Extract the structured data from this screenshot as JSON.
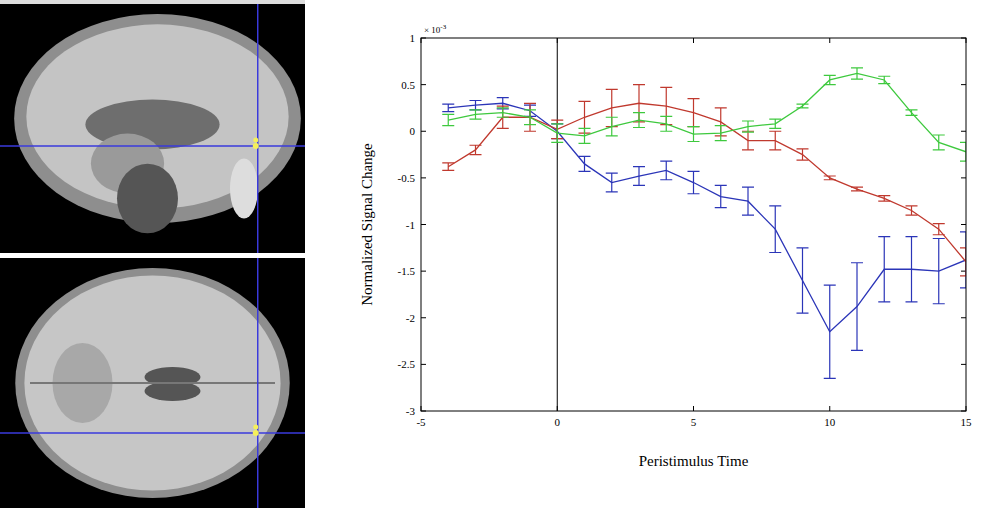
{
  "chart_data": {
    "type": "line",
    "xlabel": "Peristimulus Time",
    "ylabel": "Normalized Signal Change",
    "y_exponent_label": {
      "base": "× 10",
      "exponent": "-3"
    },
    "x": [
      -4,
      -3,
      -2,
      -1,
      0,
      1,
      2,
      3,
      4,
      5,
      6,
      7,
      8,
      9,
      10,
      11,
      12,
      13,
      14,
      15
    ],
    "xlim": [
      -5,
      15
    ],
    "xticks": [
      -5,
      0,
      5,
      10,
      15
    ],
    "ylim": [
      -3,
      1
    ],
    "yticks": [
      -3,
      -2.5,
      -2,
      -1.5,
      -1,
      -0.5,
      0,
      0.5,
      1
    ],
    "vline_x": 0,
    "grid": false,
    "series": [
      {
        "color": "#2b35b8",
        "values": [
          0.25,
          0.28,
          0.3,
          0.22,
          0.0,
          -0.35,
          -0.55,
          -0.48,
          -0.42,
          -0.55,
          -0.7,
          -0.75,
          -1.05,
          -1.6,
          -2.15,
          -1.88,
          -1.48,
          -1.48,
          -1.5,
          -1.38
        ],
        "errors": [
          0.04,
          0.05,
          0.06,
          0.06,
          0.08,
          0.08,
          0.1,
          0.1,
          0.1,
          0.12,
          0.12,
          0.15,
          0.25,
          0.35,
          0.5,
          0.47,
          0.35,
          0.35,
          0.35,
          0.3
        ]
      },
      {
        "color": "#c0392e",
        "values": [
          -0.38,
          -0.2,
          0.15,
          0.15,
          0.02,
          0.15,
          0.25,
          0.3,
          0.27,
          0.2,
          0.1,
          -0.1,
          -0.1,
          -0.25,
          -0.5,
          -0.62,
          -0.72,
          -0.85,
          -1.05,
          -1.4
        ],
        "errors": [
          0.04,
          0.05,
          0.12,
          0.15,
          0.1,
          0.17,
          0.2,
          0.2,
          0.2,
          0.15,
          0.15,
          0.1,
          0.1,
          0.06,
          0.02,
          0.02,
          0.03,
          0.05,
          0.06,
          0.15
        ]
      },
      {
        "color": "#3ec93e",
        "values": [
          0.12,
          0.18,
          0.2,
          0.15,
          -0.02,
          -0.05,
          0.05,
          0.12,
          0.08,
          -0.03,
          -0.02,
          0.05,
          0.08,
          0.27,
          0.55,
          0.62,
          0.55,
          0.2,
          -0.12,
          -0.22
        ],
        "errors": [
          0.06,
          0.05,
          0.05,
          0.08,
          0.1,
          0.08,
          0.1,
          0.08,
          0.08,
          0.08,
          0.08,
          0.06,
          0.05,
          0.02,
          0.05,
          0.06,
          0.04,
          0.03,
          0.08,
          0.1
        ]
      }
    ]
  }
}
